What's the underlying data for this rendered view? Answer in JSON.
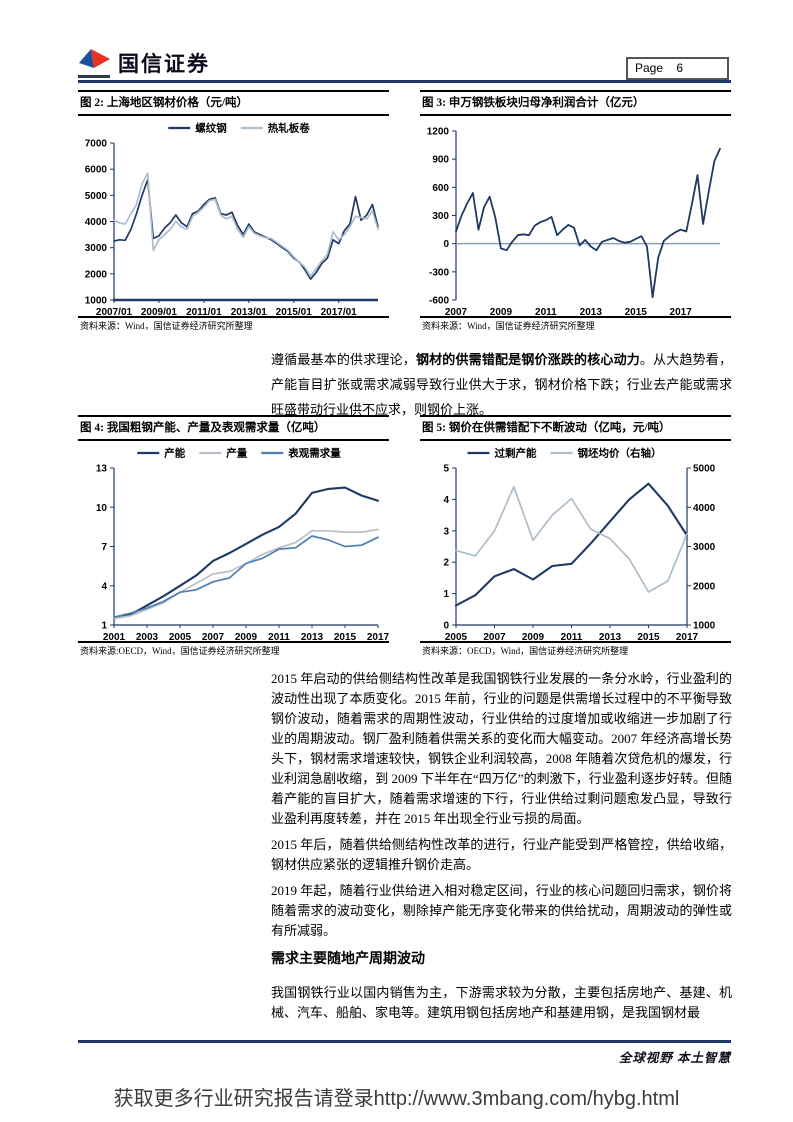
{
  "header": {
    "brand": "国信证券",
    "page_label": "Page 6"
  },
  "intro": {
    "pre": "遵循最基本的供求理论，",
    "bold": "钢材的供需错配是钢价涨跌的核心动力",
    "post": "。从大趋势看，产能盲目扩张或需求减弱导致行业供大于求，钢材价格下跌；行业去产能或需求旺盛带动行业供不应求，则钢价上涨。"
  },
  "figures": [
    {
      "title": "图 2: 上海地区钢材价格（元/吨）",
      "source": "资料来源：Wind，国信证券经济研究所整理"
    },
    {
      "title": "图 3: 申万钢铁板块归母净利润合计（亿元）",
      "source": "资料来源：Wind，国信证券经济研究所整理"
    },
    {
      "title": "图 4: 我国粗钢产能、产量及表观需求量（亿吨）",
      "source": "资料来源:OECD，Wind，国信证券经济研究所整理"
    },
    {
      "title": "图 5: 钢价在供需错配下不断波动（亿吨，元/吨）",
      "source": "资料来源：OECD，Wind，国信证券经济研究所整理"
    }
  ],
  "chart_data": [
    {
      "id": "fig2",
      "type": "line",
      "title": "上海地区钢材价格（元/吨）",
      "ylim": [
        1000,
        7000
      ],
      "yticks": [
        1000,
        2000,
        3000,
        4000,
        5000,
        6000,
        7000
      ],
      "x_ticks": [
        {
          "label": "2007/01",
          "i": 0
        },
        {
          "label": "2009/01",
          "i": 8
        },
        {
          "label": "2011/01",
          "i": 16
        },
        {
          "label": "2013/01",
          "i": 24
        },
        {
          "label": "2015/01",
          "i": 32
        },
        {
          "label": "2017/01",
          "i": 40
        }
      ],
      "legend": true,
      "legend_position": "top",
      "grid": false,
      "bottom_axis": true,
      "bottom_axis_width": 2.6,
      "series": [
        {
          "name": "螺纹钢",
          "color": "#1f3864",
          "width": 1.7,
          "values": [
            3250,
            3300,
            3280,
            3700,
            4300,
            5000,
            5600,
            3350,
            3450,
            3750,
            3950,
            4250,
            3950,
            3800,
            4300,
            4400,
            4650,
            4850,
            4900,
            4300,
            4250,
            4350,
            3850,
            3500,
            3900,
            3600,
            3500,
            3400,
            3300,
            3150,
            3000,
            2850,
            2600,
            2450,
            2150,
            1800,
            2050,
            2400,
            2600,
            3300,
            3150,
            3650,
            3900,
            4950,
            4050,
            4250,
            4650,
            3800
          ]
        },
        {
          "name": "热轧板卷",
          "color": "#aebdca",
          "width": 1.7,
          "values": [
            4050,
            3950,
            3900,
            4300,
            4650,
            5450,
            5850,
            2900,
            3300,
            3500,
            3700,
            4000,
            3800,
            3700,
            4200,
            4350,
            4550,
            4800,
            4850,
            4250,
            4100,
            4200,
            3700,
            3400,
            3800,
            3550,
            3450,
            3380,
            3350,
            3200,
            3050,
            2900,
            2650,
            2450,
            2250,
            1900,
            2200,
            2500,
            2750,
            3600,
            3300,
            3500,
            3800,
            4200,
            4150,
            4100,
            4400,
            3700
          ]
        }
      ]
    },
    {
      "id": "fig3",
      "type": "line",
      "title": "申万钢铁板块归母净利润合计（亿元）",
      "ylim": [
        -600,
        1200
      ],
      "yticks": [
        -600,
        -300,
        0,
        300,
        600,
        900,
        1200
      ],
      "x_ticks": [
        {
          "label": "2007",
          "i": 0
        },
        {
          "label": "2009",
          "i": 8
        },
        {
          "label": "2011",
          "i": 16
        },
        {
          "label": "2013",
          "i": 24
        },
        {
          "label": "2015",
          "i": 32
        },
        {
          "label": "2017",
          "i": 40
        }
      ],
      "legend": false,
      "grid": false,
      "zero_line": true,
      "bottom_axis": false,
      "series": [
        {
          "name": "归母净利润合计",
          "color": "#1f3864",
          "width": 1.8,
          "values": [
            130,
            300,
            430,
            540,
            150,
            390,
            500,
            280,
            -50,
            -70,
            20,
            90,
            100,
            90,
            190,
            230,
            250,
            285,
            90,
            150,
            200,
            170,
            -20,
            40,
            -30,
            -70,
            20,
            40,
            60,
            30,
            10,
            20,
            50,
            80,
            -30,
            -570,
            -150,
            30,
            80,
            120,
            150,
            130,
            420,
            730,
            210,
            560,
            880,
            1010
          ]
        }
      ]
    },
    {
      "id": "fig4",
      "type": "line",
      "title": "我国粗钢产能、产量及表观需求量（亿吨）",
      "ylim": [
        1,
        13
      ],
      "yticks": [
        1,
        4,
        7,
        10,
        13
      ],
      "x_ticks": [
        {
          "label": "2001",
          "i": 0
        },
        {
          "label": "2003",
          "i": 2
        },
        {
          "label": "2005",
          "i": 4
        },
        {
          "label": "2007",
          "i": 6
        },
        {
          "label": "2009",
          "i": 8
        },
        {
          "label": "2011",
          "i": 10
        },
        {
          "label": "2013",
          "i": 12
        },
        {
          "label": "2015",
          "i": 14
        },
        {
          "label": "2017",
          "i": 16
        }
      ],
      "legend": true,
      "legend_position": "top",
      "grid": false,
      "bottom_axis": true,
      "bottom_axis_width": 1.3,
      "series": [
        {
          "name": "产能",
          "color": "#1f3864",
          "width": 2.1,
          "values": [
            1.5,
            1.8,
            2.5,
            3.2,
            4.0,
            4.8,
            5.9,
            6.5,
            7.2,
            7.9,
            8.5,
            9.5,
            11.1,
            11.4,
            11.5,
            10.9,
            10.5
          ]
        },
        {
          "name": "产量",
          "color": "#b9c0c9",
          "width": 1.7,
          "values": [
            1.5,
            1.7,
            2.2,
            2.7,
            3.5,
            4.2,
            4.9,
            5.1,
            5.7,
            6.4,
            6.9,
            7.3,
            8.2,
            8.2,
            8.1,
            8.1,
            8.3
          ]
        },
        {
          "name": "表观需求量",
          "color": "#4e7fb0",
          "width": 1.7,
          "values": [
            1.6,
            1.9,
            2.3,
            2.8,
            3.5,
            3.7,
            4.3,
            4.6,
            5.7,
            6.1,
            6.8,
            6.9,
            7.8,
            7.5,
            7.0,
            7.1,
            7.7
          ]
        }
      ]
    },
    {
      "id": "fig5",
      "type": "line",
      "title": "钢价在供需错配下不断波动（亿吨，元/吨）",
      "ylim": [
        0,
        5
      ],
      "yticks": [
        0,
        1,
        2,
        3,
        4,
        5
      ],
      "right_ylim": [
        1000,
        5000
      ],
      "right_yticks": [
        1000,
        2000,
        3000,
        4000,
        5000
      ],
      "x_ticks": [
        {
          "label": "2005",
          "i": 0
        },
        {
          "label": "2007",
          "i": 2
        },
        {
          "label": "2009",
          "i": 4
        },
        {
          "label": "2011",
          "i": 6
        },
        {
          "label": "2013",
          "i": 8
        },
        {
          "label": "2015",
          "i": 10
        },
        {
          "label": "2017",
          "i": 12
        }
      ],
      "legend": true,
      "legend_position": "top",
      "grid": false,
      "bottom_axis": true,
      "bottom_axis_width": 1.3,
      "series": [
        {
          "name": "过剩产能",
          "color": "#1f3864",
          "width": 2.1,
          "values": [
            0.62,
            0.95,
            1.55,
            1.78,
            1.45,
            1.88,
            1.95,
            2.6,
            3.3,
            4.0,
            4.5,
            3.8,
            2.85
          ]
        },
        {
          "name": "钢坯均价（右轴）",
          "color": "#aebdca",
          "width": 1.7,
          "axis": "right",
          "values": [
            2900,
            2760,
            3400,
            4520,
            3160,
            3800,
            4220,
            3440,
            3200,
            2680,
            1840,
            2120,
            3320
          ]
        }
      ]
    }
  ],
  "body": {
    "p1": "2015 年启动的供给侧结构性改革是我国钢铁行业发展的一条分水岭，行业盈利的波动性出现了本质变化。2015 年前，行业的问题是供需增长过程中的不平衡导致钢价波动，随着需求的周期性波动，行业供给的过度增加或收缩进一步加剧了行业的周期波动。钢厂盈利随着供需关系的变化而大幅变动。2007 年经济高增长势头下，钢材需求增速较快，钢铁企业利润较高，2008 年随着次贷危机的爆发，行业利润急剧收缩，到 2009 下半年在“四万亿”的刺激下，行业盈利逐步好转。但随着产能的盲目扩大，随着需求增速的下行，行业供给过剩问题愈发凸显，导致行业盈利再度转差，并在 2015 年出现全行业亏损的局面。",
    "p2": "2015 年后，随着供给侧结构性改革的进行，行业产能受到严格管控，供给收缩，钢材供应紧张的逻辑推升钢价走高。",
    "p3": "2019 年起，随着行业供给进入相对稳定区间，行业的核心问题回归需求，钢价将随着需求的波动变化，剔除掉产能无序变化带来的供给扰动，周期波动的弹性或有所减弱。",
    "heading": "需求主要随地产周期波动",
    "p4": "我国钢铁行业以国内销售为主，下游需求较为分散，主要包括房地产、基建、机械、汽车、船舶、家电等。建筑用钢包括房地产和基建用钢，是我国钢材最"
  },
  "footer": {
    "motto": "全球视野 本土智慧",
    "banner": "获取更多行业研究报告请登录http://www.3mbang.com/hybg.html"
  },
  "colors": {
    "navy": "#1f3864",
    "light_steel": "#aebdca",
    "medium_blue": "#4e7fb0",
    "gray_series": "#b9c0c9",
    "zero_line": "#8ea0b5",
    "logo_blue": "#1e4e9e",
    "logo_red": "#e63322"
  }
}
